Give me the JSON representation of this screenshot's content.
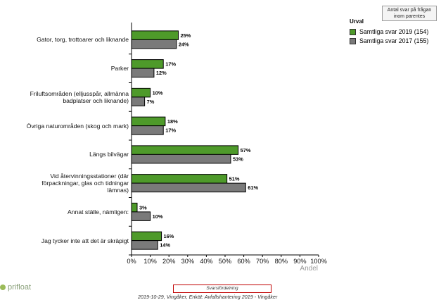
{
  "chart_data": {
    "type": "bar",
    "orientation": "horizontal",
    "categories": [
      "Gator, torg, trottoarer och liknande",
      "Parker",
      "Friluftsområden (elljusspår, allmänna\nbadplatser och liknande)",
      "Övriga naturområden (skog och mark)",
      "Längs bilvägar",
      "Vid återvinningsstationer (där\nförpackningar, glas och tidningar\nlämnas)",
      "Annat ställe, nämligen:",
      "Jag tycker inte att det är skräpigt"
    ],
    "series": [
      {
        "name": "Samtliga svar 2019 (154)",
        "color": "#4e9a2a",
        "values": [
          25,
          17,
          10,
          18,
          57,
          51,
          3,
          16
        ]
      },
      {
        "name": "Samtliga svar 2017 (155)",
        "color": "#7a7a7a",
        "values": [
          24,
          12,
          7,
          17,
          53,
          61,
          10,
          14
        ]
      }
    ],
    "xlim": [
      0,
      100
    ],
    "xticks": [
      "0%",
      "10%",
      "20%",
      "30%",
      "40%",
      "50%",
      "60%",
      "70%",
      "80%",
      "90%",
      "100%"
    ],
    "xlabel": "Andel",
    "value_suffix": "%",
    "legend_title": "Urval",
    "legend_position": "top-right",
    "grid": false
  },
  "note": "Antal svar på frågan inom parentes",
  "logo_text": "prifloat",
  "caption": "Svarsfördelning",
  "footer": "2019-10-29, Vingåker, Enkät: Avfallshantering 2019 - Vingåker"
}
